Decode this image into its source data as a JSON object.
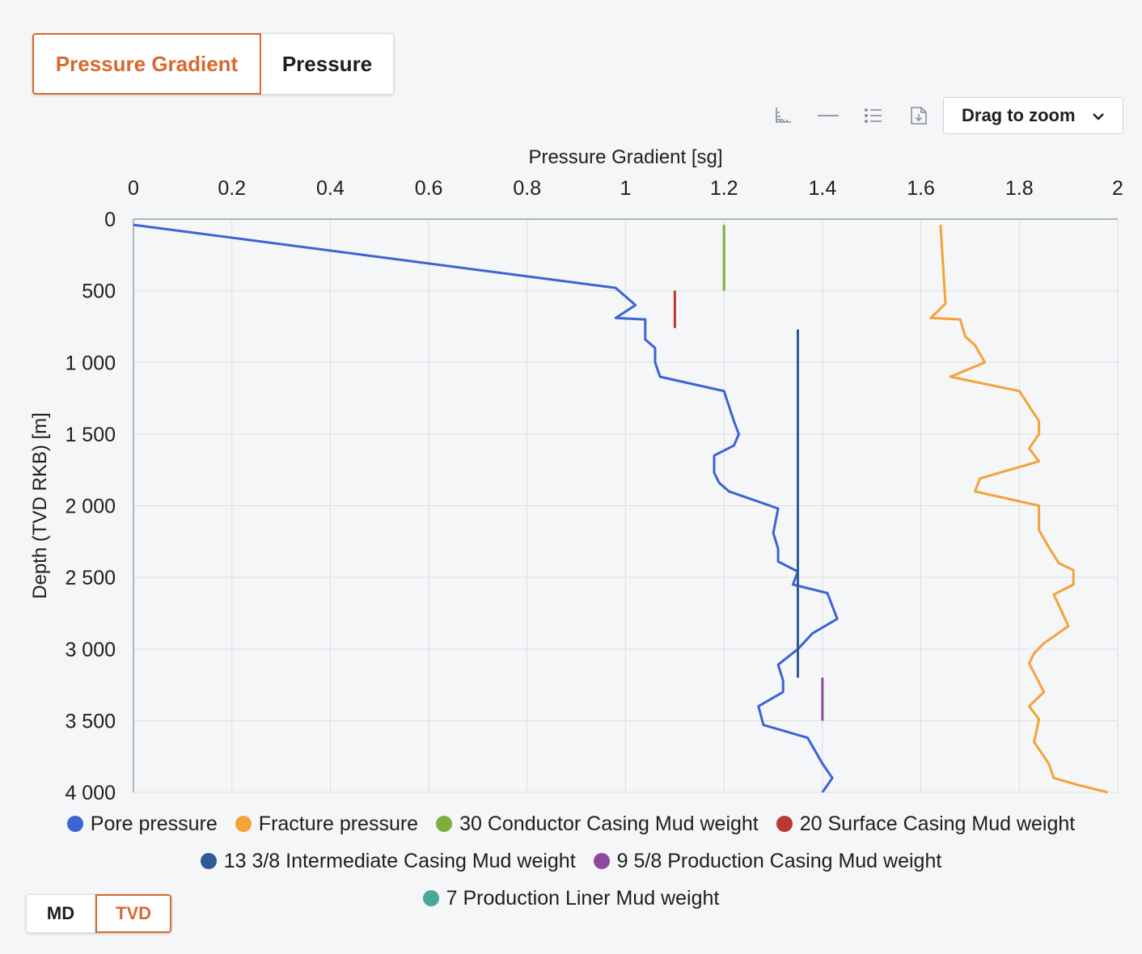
{
  "tabs": {
    "pressure_gradient": "Pressure Gradient",
    "pressure": "Pressure"
  },
  "toolbar": {
    "icons": [
      "axis-icon",
      "line-icon",
      "list-icon",
      "download-icon"
    ],
    "zoom_label": "Drag to zoom"
  },
  "depth_toggle": {
    "md": "MD",
    "tvd": "TVD"
  },
  "colors": {
    "accent": "#d8692f",
    "pore": "#3d63d4",
    "fracture": "#f4a23a",
    "conductor": "#7cae3e",
    "surface": "#b83a32",
    "intermediate": "#2f5a94",
    "production": "#8e4a9e",
    "liner": "#4aa89a"
  },
  "chart_data": {
    "type": "line",
    "title": "",
    "xlabel": "Pressure Gradient [sg]",
    "ylabel": "Depth (TVD RKB) [m]",
    "xlim": [
      0,
      2
    ],
    "ylim": [
      0,
      4000
    ],
    "y_reversed": true,
    "x_axis_position": "top",
    "x_ticks": [
      "0",
      "0.2",
      "0.4",
      "0.6",
      "0.8",
      "1",
      "1.2",
      "1.4",
      "1.6",
      "1.8",
      "2"
    ],
    "y_ticks": [
      "0",
      "500",
      "1 000",
      "1 500",
      "2 000",
      "2 500",
      "3 000",
      "3 500",
      "4 000"
    ],
    "grid": true,
    "legend_position": "bottom",
    "series": [
      {
        "name": "Pore pressure",
        "color": "#3d63d4",
        "points": [
          [
            0,
            40
          ],
          [
            0.98,
            480
          ],
          [
            1.02,
            600
          ],
          [
            0.98,
            690
          ],
          [
            1.04,
            700
          ],
          [
            1.04,
            840
          ],
          [
            1.06,
            900
          ],
          [
            1.06,
            1000
          ],
          [
            1.07,
            1100
          ],
          [
            1.2,
            1200
          ],
          [
            1.22,
            1410
          ],
          [
            1.23,
            1500
          ],
          [
            1.22,
            1580
          ],
          [
            1.18,
            1650
          ],
          [
            1.18,
            1770
          ],
          [
            1.19,
            1840
          ],
          [
            1.21,
            1900
          ],
          [
            1.31,
            2020
          ],
          [
            1.3,
            2190
          ],
          [
            1.31,
            2300
          ],
          [
            1.31,
            2390
          ],
          [
            1.35,
            2460
          ],
          [
            1.34,
            2550
          ],
          [
            1.41,
            2610
          ],
          [
            1.43,
            2790
          ],
          [
            1.38,
            2890
          ],
          [
            1.35,
            3000
          ],
          [
            1.31,
            3110
          ],
          [
            1.32,
            3220
          ],
          [
            1.32,
            3300
          ],
          [
            1.27,
            3400
          ],
          [
            1.28,
            3530
          ],
          [
            1.37,
            3620
          ],
          [
            1.4,
            3800
          ],
          [
            1.42,
            3900
          ],
          [
            1.4,
            4000
          ]
        ]
      },
      {
        "name": "Fracture pressure",
        "color": "#f4a23a",
        "points": [
          [
            1.64,
            40
          ],
          [
            1.65,
            590
          ],
          [
            1.62,
            690
          ],
          [
            1.68,
            700
          ],
          [
            1.69,
            820
          ],
          [
            1.71,
            880
          ],
          [
            1.73,
            1000
          ],
          [
            1.66,
            1100
          ],
          [
            1.8,
            1200
          ],
          [
            1.84,
            1410
          ],
          [
            1.84,
            1500
          ],
          [
            1.82,
            1600
          ],
          [
            1.84,
            1690
          ],
          [
            1.72,
            1810
          ],
          [
            1.71,
            1900
          ],
          [
            1.84,
            2000
          ],
          [
            1.84,
            2170
          ],
          [
            1.86,
            2290
          ],
          [
            1.88,
            2400
          ],
          [
            1.91,
            2450
          ],
          [
            1.91,
            2550
          ],
          [
            1.87,
            2620
          ],
          [
            1.9,
            2840
          ],
          [
            1.85,
            2960
          ],
          [
            1.83,
            3030
          ],
          [
            1.82,
            3100
          ],
          [
            1.85,
            3300
          ],
          [
            1.82,
            3400
          ],
          [
            1.84,
            3490
          ],
          [
            1.83,
            3650
          ],
          [
            1.86,
            3800
          ],
          [
            1.87,
            3900
          ],
          [
            1.92,
            3950
          ],
          [
            1.98,
            4000
          ]
        ]
      },
      {
        "name": "30 Conductor Casing Mud weight",
        "color": "#7cae3e",
        "points": [
          [
            1.2,
            40
          ],
          [
            1.2,
            500
          ]
        ]
      },
      {
        "name": "20 Surface Casing Mud weight",
        "color": "#b83a32",
        "points": [
          [
            1.1,
            500
          ],
          [
            1.1,
            760
          ]
        ]
      },
      {
        "name": "13 3/8 Intermediate Casing Mud weight",
        "color": "#2f5a94",
        "points": [
          [
            1.35,
            770
          ],
          [
            1.35,
            3200
          ]
        ]
      },
      {
        "name": "9 5/8 Production Casing Mud weight",
        "color": "#8e4a9e",
        "points": [
          [
            1.4,
            3200
          ],
          [
            1.4,
            3500
          ]
        ]
      },
      {
        "name": "7 Production Liner Mud weight",
        "color": "#4aa89a",
        "points": []
      }
    ]
  }
}
